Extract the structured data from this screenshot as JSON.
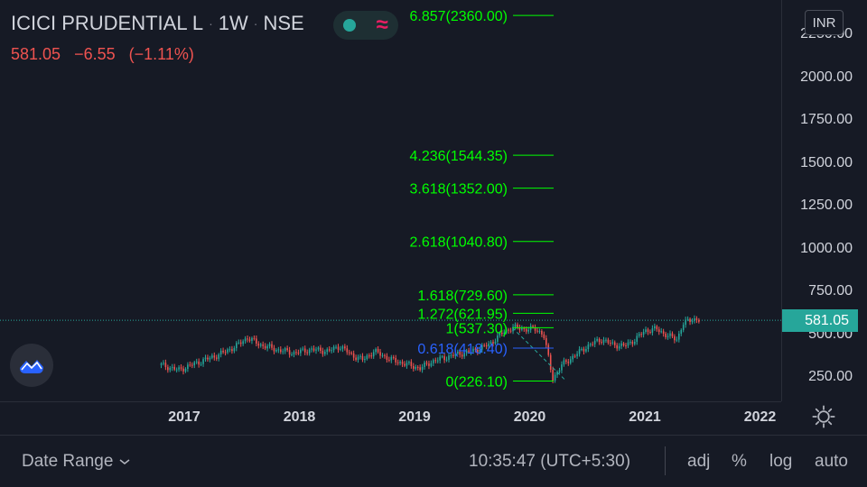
{
  "header": {
    "symbol": "ICICI PRUDENTIAL L",
    "interval": "1W",
    "exchange": "NSE",
    "last": "581.05",
    "change": "−6.55",
    "change_pct": "(−1.11%)",
    "currency": "INR",
    "status_wave_glyph": "≈"
  },
  "price_axis": {
    "labels": [
      "2250.00",
      "2000.00",
      "1750.00",
      "1500.00",
      "1250.00",
      "1000.00",
      "750.00",
      "500.00",
      "250.00"
    ],
    "last_price_badge": "581.05"
  },
  "time_axis": {
    "labels": [
      "2017",
      "2018",
      "2019",
      "2020",
      "2021",
      "2022"
    ]
  },
  "chart_data": {
    "type": "candlestick",
    "symbol": "ICICI PRUDENTIAL L",
    "interval": "1W",
    "last_price": 581.05,
    "fib_levels": [
      {
        "label": "6.857(2360.00)",
        "ratio": 6.857,
        "price": 2360.0,
        "color": "#00ff00"
      },
      {
        "label": "4.236(1544.35)",
        "ratio": 4.236,
        "price": 1544.35,
        "color": "#00ff00"
      },
      {
        "label": "3.618(1352.00)",
        "ratio": 3.618,
        "price": 1352.0,
        "color": "#00ff00"
      },
      {
        "label": "2.618(1040.80)",
        "ratio": 2.618,
        "price": 1040.8,
        "color": "#00ff00"
      },
      {
        "label": "1.618(729.60)",
        "ratio": 1.618,
        "price": 729.6,
        "color": "#00ff00"
      },
      {
        "label": "1.272(621.95)",
        "ratio": 1.272,
        "price": 621.95,
        "color": "#00ff00"
      },
      {
        "label": "1(537.30)",
        "ratio": 1,
        "price": 537.3,
        "color": "#00ff00"
      },
      {
        "label": "0.618(418.40)",
        "ratio": 0.618,
        "price": 418.4,
        "color": "#2962ff"
      },
      {
        "label": "0(226.10)",
        "ratio": 0,
        "price": 226.1,
        "color": "#00ff00"
      }
    ],
    "price_path": [
      [
        2016.8,
        320
      ],
      [
        2016.95,
        290
      ],
      [
        2017.1,
        330
      ],
      [
        2017.3,
        380
      ],
      [
        2017.45,
        430
      ],
      [
        2017.55,
        480
      ],
      [
        2017.65,
        440
      ],
      [
        2017.8,
        410
      ],
      [
        2017.95,
        390
      ],
      [
        2018.1,
        410
      ],
      [
        2018.25,
        400
      ],
      [
        2018.35,
        430
      ],
      [
        2018.45,
        380
      ],
      [
        2018.55,
        350
      ],
      [
        2018.65,
        400
      ],
      [
        2018.8,
        350
      ],
      [
        2018.95,
        320
      ],
      [
        2019.05,
        300
      ],
      [
        2019.15,
        340
      ],
      [
        2019.25,
        360
      ],
      [
        2019.35,
        380
      ],
      [
        2019.5,
        400
      ],
      [
        2019.65,
        440
      ],
      [
        2019.75,
        500
      ],
      [
        2019.85,
        540
      ],
      [
        2019.95,
        530
      ],
      [
        2020.05,
        530
      ],
      [
        2020.12,
        500
      ],
      [
        2020.2,
        240
      ],
      [
        2020.28,
        320
      ],
      [
        2020.38,
        370
      ],
      [
        2020.5,
        430
      ],
      [
        2020.62,
        470
      ],
      [
        2020.72,
        440
      ],
      [
        2020.82,
        430
      ],
      [
        2020.92,
        470
      ],
      [
        2021.0,
        520
      ],
      [
        2021.1,
        530
      ],
      [
        2021.2,
        490
      ],
      [
        2021.28,
        470
      ],
      [
        2021.33,
        560
      ],
      [
        2021.42,
        590
      ],
      [
        2021.47,
        581
      ]
    ],
    "swing_line": {
      "from": [
        2019.85,
        537.3
      ],
      "to": [
        2020.2,
        226.1
      ]
    },
    "x_ticks": [
      2017,
      2018,
      2019,
      2020,
      2021,
      2022
    ],
    "y_ticks": [
      250,
      500,
      750,
      1000,
      1250,
      1500,
      1750,
      2000,
      2250
    ],
    "colors": {
      "up": "#26a69a",
      "down": "#ef5350",
      "fib": "#00ff00",
      "fib_618": "#2962ff",
      "swing": "#26a69a"
    }
  },
  "bottom_bar": {
    "date_range": "Date Range",
    "clock": "10:35:47 (UTC+5:30)",
    "adj": "adj",
    "percent": "%",
    "log": "log",
    "auto": "auto"
  }
}
